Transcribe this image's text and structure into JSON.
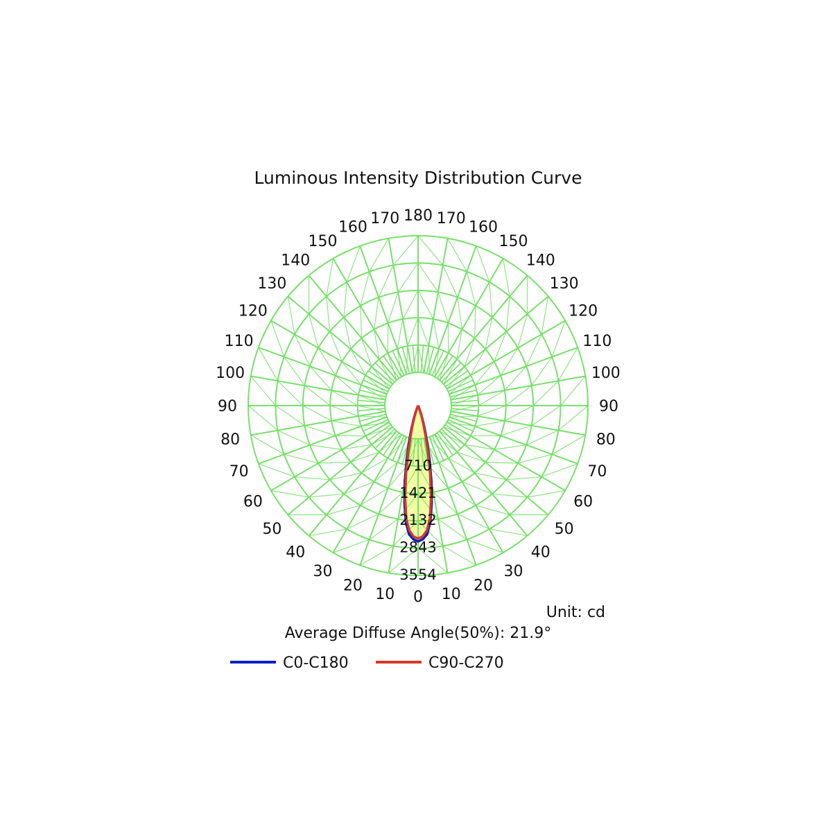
{
  "chart_data": {
    "type": "polar",
    "title": "Luminous Intensity Distribution Curve",
    "unit_label": "Unit: cd",
    "beam_angle_label": "Average Diffuse Angle(50%): 21.9°",
    "radial_ticks": [
      710,
      1421,
      2132,
      2843,
      3554
    ],
    "radial_max": 3554,
    "angle_ticks_left": [
      "0",
      "10",
      "20",
      "30",
      "40",
      "50",
      "60",
      "70",
      "80",
      "90",
      "100",
      "110",
      "120",
      "130",
      "140",
      "150",
      "160",
      "170",
      "180"
    ],
    "angle_ticks_right": [
      "10",
      "20",
      "30",
      "40",
      "50",
      "60",
      "70",
      "80",
      "90",
      "100",
      "110",
      "120",
      "130",
      "140",
      "150",
      "160",
      "170"
    ],
    "angle_tick_values": [
      0,
      10,
      20,
      30,
      40,
      50,
      60,
      70,
      80,
      90,
      100,
      110,
      120,
      130,
      140,
      150,
      160,
      170,
      180
    ],
    "colors": {
      "grid": "#77e06a",
      "fill": "#eeff99",
      "c0": "#0a1fbf",
      "c90": "#d9362b"
    },
    "series": [
      {
        "name": "C0-C180",
        "color": "#0a1fbf",
        "angles": [
          0,
          2,
          4,
          6,
          8,
          10,
          12,
          14,
          16,
          18,
          20,
          25,
          30,
          35
        ],
        "values": [
          2843,
          2800,
          2700,
          2450,
          2050,
          1600,
          1150,
          780,
          500,
          300,
          160,
          30,
          5,
          0
        ]
      },
      {
        "name": "C90-C270",
        "color": "#d9362b",
        "angles": [
          0,
          2,
          4,
          6,
          8,
          10,
          12,
          14,
          16,
          18,
          20,
          25,
          30,
          35
        ],
        "values": [
          2780,
          2740,
          2620,
          2380,
          1950,
          1450,
          1000,
          650,
          400,
          230,
          120,
          25,
          3,
          0
        ]
      }
    ]
  }
}
